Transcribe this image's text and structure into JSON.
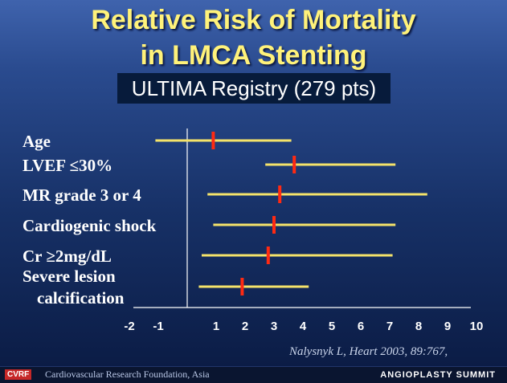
{
  "slide": {
    "title_line1": "Relative Risk of Mortality",
    "title_line2": "in LMCA Stenting",
    "subtitle": "ULTIMA Registry (279 pts)",
    "citation": "Nalysnyk L, Heart 2003, 89:767,",
    "footer_logo": "CVRF",
    "footer_org": "Cardiovascular Research Foundation, Asia",
    "footer_brand": "ANGIOPLASTY SUMMIT"
  },
  "colors": {
    "background_top": "#3f63ad",
    "background_bottom": "#0a1a42",
    "title": "#fff27a",
    "ci_bar": "#f5e36a",
    "point_marker": "#ff2a12",
    "text": "#ffffff"
  },
  "chart_data": {
    "type": "forest",
    "title": "Relative Risk of Mortality in LMCA Stenting",
    "subtitle": "ULTIMA Registry (279 pts)",
    "xlabel": "",
    "ylabel": "",
    "xlim": [
      -2,
      10
    ],
    "x_ticks": [
      -2,
      -1,
      1,
      2,
      3,
      4,
      5,
      6,
      7,
      8,
      9,
      10
    ],
    "reference_line": 0,
    "rows": [
      {
        "label": "Age",
        "estimate": 0.9,
        "ci_low": -1.1,
        "ci_high": 3.6
      },
      {
        "label": "LVEF ≤30%",
        "estimate": 3.7,
        "ci_low": 2.7,
        "ci_high": 7.2
      },
      {
        "label": "MR grade 3 or 4",
        "estimate": 3.2,
        "ci_low": 0.7,
        "ci_high": 8.3
      },
      {
        "label": "Cardiogenic shock",
        "estimate": 3.0,
        "ci_low": 0.9,
        "ci_high": 7.2
      },
      {
        "label": "Cr ≥2mg/dL",
        "estimate": 2.8,
        "ci_low": 0.5,
        "ci_high": 7.1
      },
      {
        "label_lines": [
          "Severe lesion",
          "calcification"
        ],
        "estimate": 1.9,
        "ci_low": 0.4,
        "ci_high": 4.2
      }
    ]
  }
}
